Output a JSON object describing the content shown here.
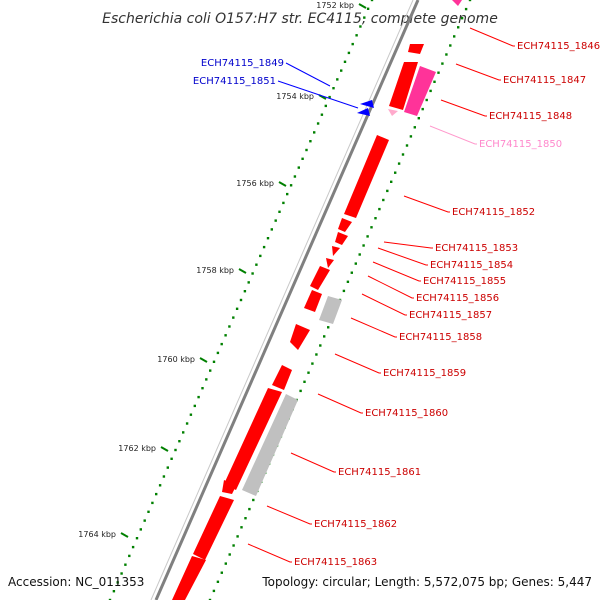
{
  "title": "Escherichia coli O157:H7 str. EC4115, complete genome",
  "footer": {
    "accession": "Accession: NC_011353",
    "topology": "Topology: circular; Length: 5,572,075 bp; Genes: 5,447"
  },
  "colors": {
    "red_gene": "#ff0000",
    "pink_gene": "#ff3399",
    "light_pink_label": "#ff88cc",
    "blue_gene": "#0000ff",
    "gray_gene": "#c0c0c0",
    "backbone": "#808080",
    "dots": "#008000"
  },
  "ticks": [
    {
      "label": "1752 kbp"
    },
    {
      "label": "1754 kbp"
    },
    {
      "label": "1756 kbp"
    },
    {
      "label": "1758 kbp"
    },
    {
      "label": "1760 kbp"
    },
    {
      "label": "1762 kbp"
    },
    {
      "label": "1764 kbp"
    }
  ],
  "genes_left": [
    {
      "label": "ECH74115_1849",
      "color": "blue"
    },
    {
      "label": "ECH74115_1851",
      "color": "blue"
    }
  ],
  "genes_right": [
    {
      "label": "ECH74115_1846",
      "color": "red"
    },
    {
      "label": "ECH74115_1847",
      "color": "red"
    },
    {
      "label": "ECH74115_1848",
      "color": "red"
    },
    {
      "label": "ECH74115_1850",
      "color": "lightpink"
    },
    {
      "label": "ECH74115_1852",
      "color": "red"
    },
    {
      "label": "ECH74115_1853",
      "color": "red"
    },
    {
      "label": "ECH74115_1854",
      "color": "red"
    },
    {
      "label": "ECH74115_1855",
      "color": "red"
    },
    {
      "label": "ECH74115_1856",
      "color": "red"
    },
    {
      "label": "ECH74115_1857",
      "color": "red"
    },
    {
      "label": "ECH74115_1858",
      "color": "red"
    },
    {
      "label": "ECH74115_1859",
      "color": "red"
    },
    {
      "label": "ECH74115_1860",
      "color": "red"
    },
    {
      "label": "ECH74115_1861",
      "color": "red"
    },
    {
      "label": "ECH74115_1862",
      "color": "red"
    },
    {
      "label": "ECH74115_1863",
      "color": "red"
    }
  ]
}
